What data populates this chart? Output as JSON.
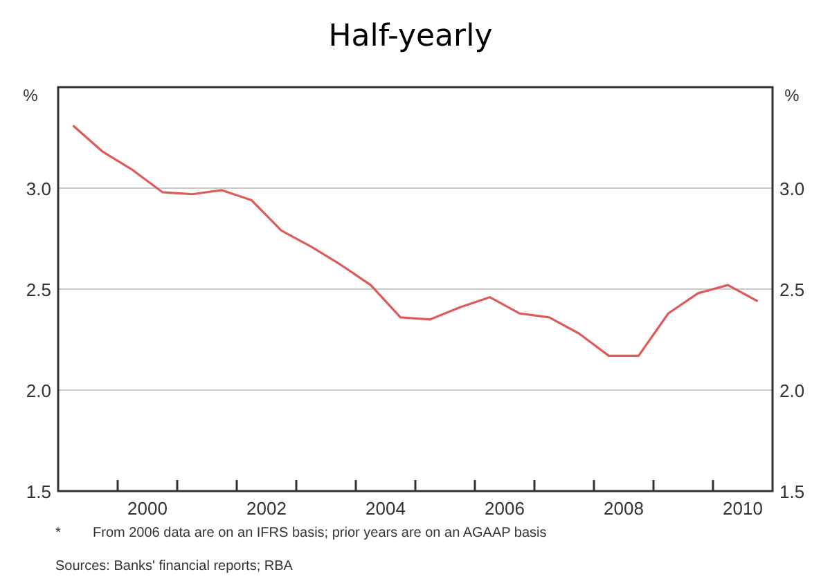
{
  "chart_data": {
    "type": "line",
    "title": "Half-yearly",
    "ylabel": "%",
    "y2label": "%",
    "x": [
      1999.25,
      1999.75,
      2000.25,
      2000.75,
      2001.25,
      2001.75,
      2002.25,
      2002.75,
      2003.25,
      2003.75,
      2004.25,
      2004.75,
      2005.25,
      2005.75,
      2006.25,
      2006.75,
      2007.25,
      2007.75,
      2008.25,
      2008.75,
      2009.25,
      2009.75,
      2010.25,
      2010.75
    ],
    "series": [
      {
        "color": "#e05a5a",
        "values": [
          3.31,
          3.18,
          3.09,
          2.98,
          2.97,
          2.99,
          2.94,
          2.79,
          2.71,
          2.62,
          2.52,
          2.36,
          2.35,
          2.41,
          2.46,
          2.38,
          2.36,
          2.28,
          2.17,
          2.17,
          2.38,
          2.48,
          2.52,
          2.44
        ]
      }
    ],
    "xlim": [
      1999,
      2011
    ],
    "xticks": [
      {
        "value": 2000,
        "label": null
      },
      {
        "value": 2000.5,
        "label": "2000"
      },
      {
        "value": 2001,
        "label": null
      },
      {
        "value": 2002,
        "label": null
      },
      {
        "value": 2002.5,
        "label": "2002"
      },
      {
        "value": 2003,
        "label": null
      },
      {
        "value": 2004,
        "label": null
      },
      {
        "value": 2004.5,
        "label": "2004"
      },
      {
        "value": 2005,
        "label": null
      },
      {
        "value": 2006,
        "label": null
      },
      {
        "value": 2006.5,
        "label": "2006"
      },
      {
        "value": 2007,
        "label": null
      },
      {
        "value": 2008,
        "label": null
      },
      {
        "value": 2008.5,
        "label": "2008"
      },
      {
        "value": 2009,
        "label": null
      },
      {
        "value": 2010,
        "label": null
      },
      {
        "value": 2010.5,
        "label": "2010"
      }
    ],
    "ylim": [
      1.5,
      3.5
    ],
    "yticks": [
      1.5,
      {
        "value": 2,
        "label": "2.0"
      },
      2.5,
      {
        "value": 3,
        "label": "3.0"
      }
    ],
    "y2lim": [
      1.5,
      3.5
    ],
    "y2ticks": [
      1.5,
      {
        "value": 2,
        "label": "2.0"
      },
      2.5,
      {
        "value": 3,
        "label": "3.0"
      }
    ],
    "grid": "y",
    "marker": "none",
    "line_style": "solid",
    "annotations": [
      "*",
      "From 2006 data are on an IFRS basis; prior years are on an AGAAP basis",
      "Sources: Banks' financial reports; RBA"
    ]
  }
}
